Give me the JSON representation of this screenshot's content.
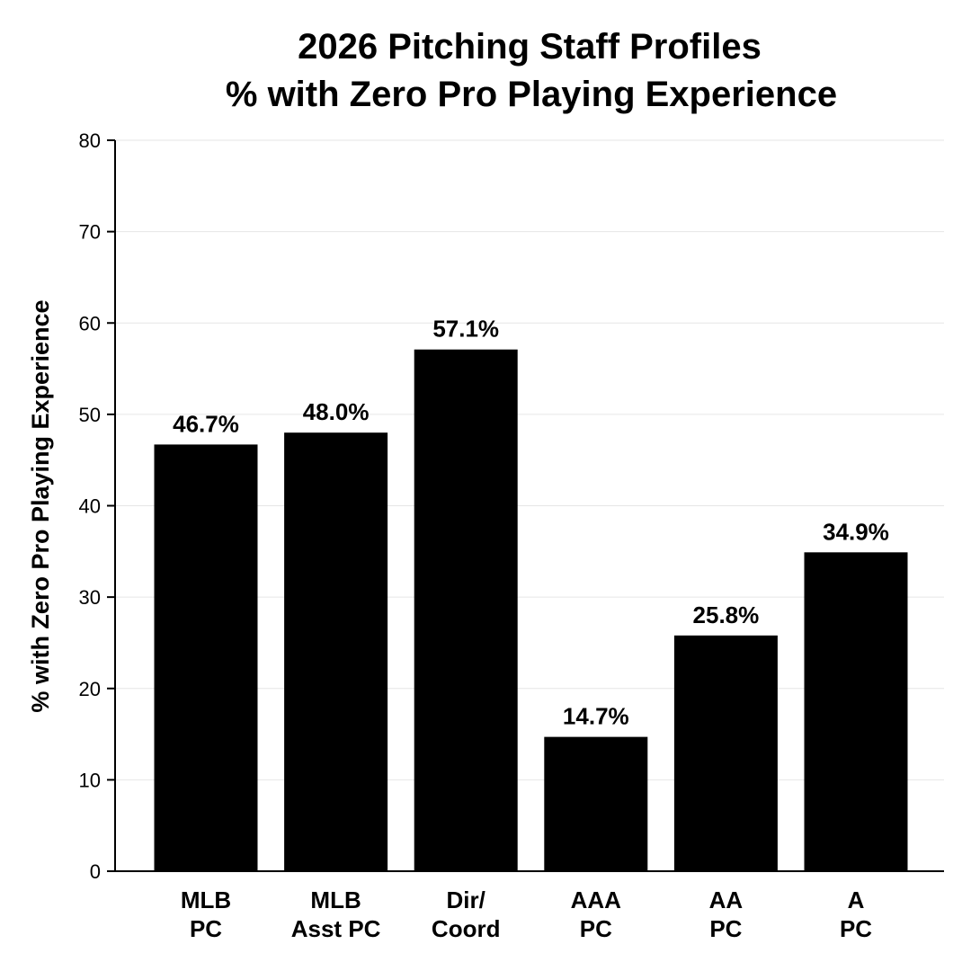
{
  "chart_data": {
    "type": "bar",
    "title_lines": [
      "2026 Pitching Staff Profiles",
      "% with Zero Pro Playing Experience"
    ],
    "xlabel": "",
    "ylabel": "% with Zero Pro Playing Experience",
    "categories": [
      [
        "MLB",
        "PC"
      ],
      [
        "MLB",
        "Asst PC"
      ],
      [
        "Dir/",
        "Coord"
      ],
      [
        "AAA",
        "PC"
      ],
      [
        "AA",
        "PC"
      ],
      [
        "A",
        "PC"
      ]
    ],
    "values": [
      46.7,
      48.0,
      57.1,
      14.7,
      25.8,
      34.9
    ],
    "value_labels": [
      "46.7%",
      "48.0%",
      "57.1%",
      "14.7%",
      "25.8%",
      "34.9%"
    ],
    "ylim": [
      0,
      80
    ],
    "yticks": [
      0,
      10,
      20,
      30,
      40,
      50,
      60,
      70,
      80
    ],
    "grid": true,
    "bar_color": "#000000"
  }
}
